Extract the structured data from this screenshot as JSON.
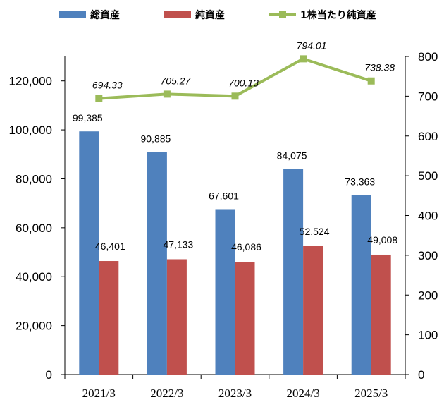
{
  "chart_data": {
    "type": "bar",
    "categories": [
      "2021/3",
      "2022/3",
      "2023/3",
      "2024/3",
      "2025/3"
    ],
    "series": [
      {
        "name": "総資産",
        "kind": "bar",
        "axis": "left",
        "color": "#4f81bd",
        "values": [
          99385,
          90885,
          67601,
          84075,
          73363
        ],
        "labels": [
          "99,385",
          "90,885",
          "67,601",
          "84,075",
          "73,363"
        ]
      },
      {
        "name": "純資産",
        "kind": "bar",
        "axis": "left",
        "color": "#c0504d",
        "values": [
          46401,
          47133,
          46086,
          52524,
          49008
        ],
        "labels": [
          "46,401",
          "47,133",
          "46,086",
          "52,524",
          "49,008"
        ]
      },
      {
        "name": "1株当たり純資産",
        "kind": "line",
        "axis": "right",
        "color": "#9bbb59",
        "values": [
          694.33,
          705.27,
          700.13,
          794.01,
          738.38
        ],
        "labels": [
          "694.33",
          "705.27",
          "700.13",
          "794.01",
          "738.38"
        ]
      }
    ],
    "left_axis": {
      "min": 0,
      "max": 130000,
      "tick_values": [
        0,
        20000,
        40000,
        60000,
        80000,
        100000,
        120000
      ],
      "tick_labels": [
        "0",
        "20,000",
        "40,000",
        "60,000",
        "80,000",
        "100,000",
        "120,000"
      ]
    },
    "right_axis": {
      "min": 0,
      "max": 800,
      "tick_values": [
        0,
        100,
        200,
        300,
        400,
        500,
        600,
        700,
        800
      ],
      "tick_labels": [
        "0",
        "100",
        "200",
        "300",
        "400",
        "500",
        "600",
        "700",
        "800"
      ]
    },
    "legend": {
      "position": "top"
    },
    "grid": false
  }
}
